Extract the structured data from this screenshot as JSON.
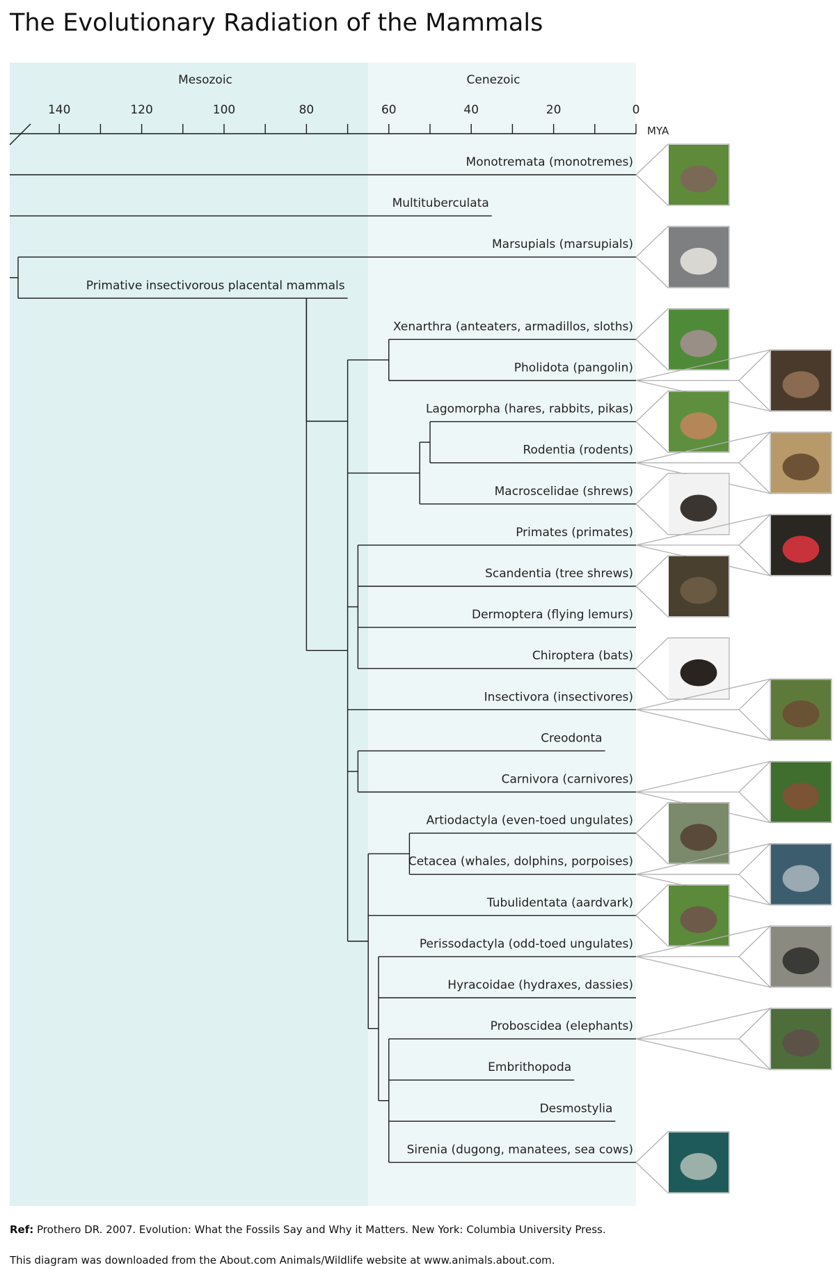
{
  "title": "The Evolutionary Radiation of the Mammals",
  "eras": [
    "Mesozoic",
    "Cenezoic"
  ],
  "axis": {
    "unit": "MYA",
    "range_mya": [
      152,
      0
    ],
    "boundary_mya": 65,
    "ticks_labeled": [
      140,
      120,
      100,
      80,
      60,
      40,
      20,
      0
    ],
    "ticks_minor": [
      130,
      110,
      90,
      70,
      50,
      30,
      10
    ]
  },
  "colors": {
    "mesozoic_bg": "#dff1f0",
    "cenozoic_bg": "#eef7f7",
    "line": "#1a1a1a",
    "photo_frame": "#b0b0b0"
  },
  "taxa": [
    {
      "label": "Monotremata (monotremes)",
      "end": 0,
      "photo": "echidna",
      "col": 1
    },
    {
      "label": "Multituberculata",
      "end": 35,
      "photo": null,
      "col": 0
    },
    {
      "label": "Marsupials (marsupials)",
      "end": 0,
      "photo": "koala",
      "col": 1
    },
    {
      "label": "Primative insectivorous placental mammals",
      "end": 70,
      "photo": null,
      "col": 0
    },
    {
      "label": "Xenarthra (anteaters, armadillos, sloths)",
      "end": 0,
      "photo": "armadillo",
      "col": 1
    },
    {
      "label": "Pholidota (pangolin)",
      "end": 0,
      "photo": "pangolin",
      "col": 2
    },
    {
      "label": "Lagomorpha (hares, rabbits, pikas)",
      "end": 0,
      "photo": "rabbit",
      "col": 1
    },
    {
      "label": "Rodentia (rodents)",
      "end": 0,
      "photo": "mouse",
      "col": 2
    },
    {
      "label": "Macroscelidae (shrews)",
      "end": 0,
      "photo": "shrew",
      "col": 1
    },
    {
      "label": "Primates (primates)",
      "end": 0,
      "photo": "mandrill",
      "col": 2
    },
    {
      "label": "Scandentia (tree shrews)",
      "end": 0,
      "photo": "tree-shrew",
      "col": 1
    },
    {
      "label": "Dermoptera (flying lemurs)",
      "end": 0,
      "photo": null,
      "col": 0
    },
    {
      "label": "Chiroptera (bats)",
      "end": 0,
      "photo": "bat",
      "col": 1
    },
    {
      "label": "Insectivora (insectivores)",
      "end": 0,
      "photo": "hedgehog",
      "col": 2
    },
    {
      "label": "Creodonta",
      "end": 7.5,
      "photo": null,
      "col": 0
    },
    {
      "label": "Carnivora (carnivores)",
      "end": 0,
      "photo": "bear",
      "col": 2
    },
    {
      "label": "Artiodactyla (even-toed ungulates)",
      "end": 0,
      "photo": "deer",
      "col": 1
    },
    {
      "label": "Cetacea (whales, dolphins, porpoises)",
      "end": 0,
      "photo": "dolphin",
      "col": 2
    },
    {
      "label": "Tubulidentata (aardvark)",
      "end": 0,
      "photo": "aardvark",
      "col": 1
    },
    {
      "label": "Perissodactyla (odd-toed ungulates)",
      "end": 0,
      "photo": "rhinoceros",
      "col": 2
    },
    {
      "label": "Hyracoidae (hydraxes, dassies)",
      "end": 0,
      "photo": null,
      "col": 0
    },
    {
      "label": "Proboscidea (elephants)",
      "end": 0,
      "photo": "elephant",
      "col": 2
    },
    {
      "label": "Embrithopoda",
      "end": 15,
      "photo": null,
      "col": 0
    },
    {
      "label": "Desmostylia",
      "end": 5,
      "photo": null,
      "col": 0
    },
    {
      "label": "Sirenia (dugong, manatees, sea cows)",
      "end": 0,
      "photo": "manatee",
      "col": 1
    }
  ],
  "nodes": [
    {
      "mya": 150,
      "children": [
        2,
        3
      ]
    },
    {
      "mya": 60,
      "children": [
        4,
        5
      ]
    },
    {
      "mya": 50,
      "children": [
        6,
        7
      ]
    },
    {
      "mya": 52.5,
      "children": [
        "n2",
        8
      ]
    },
    {
      "mya": 67.5,
      "children": [
        9,
        10,
        11,
        12
      ]
    },
    {
      "mya": 67.5,
      "children": [
        14,
        15
      ]
    },
    {
      "mya": 55,
      "children": [
        16,
        17
      ]
    },
    {
      "mya": 60,
      "children": [
        21,
        22,
        23,
        24
      ]
    },
    {
      "mya": 62.5,
      "children": [
        19,
        20,
        "n7"
      ]
    },
    {
      "mya": 65,
      "children": [
        "n6",
        18,
        "n8"
      ]
    },
    {
      "mya": 70,
      "children": [
        "n1",
        "n3",
        "n4",
        13,
        "n5",
        "n9"
      ]
    },
    {
      "mya": 80,
      "children": [
        3,
        "n10"
      ]
    }
  ],
  "footer": {
    "ref_label": "Ref:",
    "ref_text": " Prothero DR. 2007. Evolution: What the Fossils Say and Why it Matters. New York: Columbia University Press.",
    "source": "This diagram was downloaded from the About.com Animals/Wildlife website at www.animals.about.com."
  }
}
